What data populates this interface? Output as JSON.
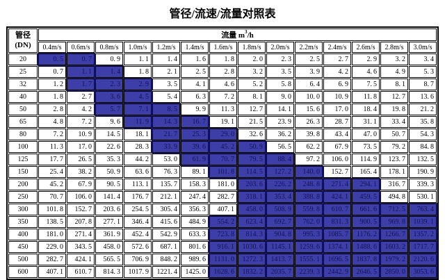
{
  "title": "管径/流速/流量对照表",
  "table": {
    "corner": {
      "line1": "管径",
      "line2": "(DN)"
    },
    "flow_header": {
      "prefix": "流量 m",
      "sup": "3",
      "suffix": "/h"
    },
    "columns": [
      "0.4m/s",
      "0.6m/s",
      "0.8m/s",
      "1.0m/s",
      "1.2m/s",
      "1.4m/s",
      "1.6m/s",
      "1.8m/s",
      "2.0m/s",
      "2.2m/s",
      "2.4m/s",
      "2.6m/s",
      "2.8m/s",
      "3.0m/s"
    ],
    "rows": [
      {
        "dn": "20",
        "values": [
          0.5,
          0.7,
          0.9,
          1.1,
          1.4,
          1.6,
          1.8,
          2.0,
          2.3,
          2.5,
          2.7,
          2.9,
          3.2,
          3.4
        ],
        "highlight": [
          0,
          1
        ]
      },
      {
        "dn": "25",
        "values": [
          0.7,
          1.1,
          1.4,
          1.8,
          2.1,
          2.5,
          2.8,
          3.2,
          3.5,
          3.9,
          4.2,
          4.6,
          4.9,
          5.3
        ],
        "highlight": [
          1,
          2
        ]
      },
      {
        "dn": "32",
        "values": [
          1.2,
          1.7,
          2.3,
          2.9,
          3.5,
          4.1,
          4.6,
          5.2,
          5.8,
          6.4,
          6.9,
          7.5,
          8.1,
          8.7
        ],
        "highlight": [
          1,
          3
        ]
      },
      {
        "dn": "40",
        "values": [
          1.8,
          2.7,
          3.6,
          4.5,
          5.4,
          6.3,
          7.2,
          8.1,
          9.0,
          10.0,
          10.9,
          11.8,
          12.7,
          13.6
        ],
        "highlight": [
          2,
          3
        ]
      },
      {
        "dn": "50",
        "values": [
          2.8,
          4.2,
          5.7,
          7.1,
          8.5,
          9.9,
          11.3,
          12.7,
          14.1,
          15.6,
          17.0,
          18.4,
          19.8,
          21.2
        ],
        "highlight": [
          2,
          4
        ]
      },
      {
        "dn": "65",
        "values": [
          4.8,
          7.2,
          9.6,
          11.9,
          14.3,
          16.7,
          19.1,
          21.5,
          23.9,
          26.3,
          28.7,
          31.1,
          33.4,
          35.8
        ],
        "highlight": [
          3,
          5
        ]
      },
      {
        "dn": "80",
        "values": [
          7.2,
          10.9,
          14.5,
          18.1,
          21.7,
          25.3,
          29.0,
          32.6,
          36.2,
          39.8,
          43.4,
          47.0,
          50.7,
          54.3
        ],
        "highlight": [
          4,
          6
        ]
      },
      {
        "dn": "100",
        "values": [
          11.3,
          17.0,
          22.6,
          28.3,
          33.9,
          39.6,
          45.2,
          50.9,
          56.5,
          62.2,
          67.9,
          73.5,
          79.2,
          84.8
        ],
        "highlight": [
          4,
          7
        ]
      },
      {
        "dn": "125",
        "values": [
          17.7,
          26.5,
          35.3,
          44.2,
          53.0,
          61.9,
          70.7,
          79.5,
          88.4,
          97.2,
          106.0,
          114.9,
          123.7,
          132.5
        ],
        "highlight": [
          5,
          8
        ]
      },
      {
        "dn": "150",
        "values": [
          25.4,
          38.2,
          50.9,
          63.6,
          76.3,
          89.1,
          101.8,
          114.5,
          127.2,
          140.0,
          152.7,
          165.4,
          178.1,
          190.9
        ],
        "highlight": [
          6,
          9
        ]
      },
      {
        "dn": "200",
        "values": [
          45.2,
          67.9,
          90.5,
          113.1,
          135.7,
          158.3,
          181.0,
          203.6,
          226.2,
          248.8,
          271.4,
          294.1,
          316.7,
          339.3
        ],
        "highlight": [
          7,
          11
        ]
      },
      {
        "dn": "250",
        "values": [
          70.7,
          106.0,
          141.4,
          176.7,
          212.1,
          247.4,
          282.7,
          318.1,
          353.4,
          388.8,
          424.1,
          459.5,
          494.8,
          530.1
        ],
        "highlight": [
          7,
          11
        ]
      },
      {
        "dn": "300",
        "values": [
          101.8,
          152.7,
          203.6,
          254.5,
          305.4,
          356.3,
          407.1,
          458.0,
          508.9,
          559.8,
          610.7,
          661.6,
          712.5,
          763.4
        ],
        "highlight": [
          7,
          13
        ]
      },
      {
        "dn": "350",
        "values": [
          138.5,
          207.8,
          277.1,
          346.4,
          415.6,
          484.9,
          554.2,
          623.4,
          692.7,
          762.0,
          831.3,
          900.5,
          969.8,
          1039.1
        ],
        "highlight": [
          6,
          13
        ]
      },
      {
        "dn": "400",
        "values": [
          181.0,
          271.4,
          361.9,
          452.4,
          542.9,
          633.3,
          723.8,
          814.3,
          904.8,
          995.3,
          1085.7,
          1176.2,
          1266.7,
          1357.2
        ],
        "highlight": [
          6,
          13
        ]
      },
      {
        "dn": "450",
        "values": [
          229.0,
          343.5,
          458.0,
          572.6,
          687.1,
          801.6,
          916.1,
          1030.6,
          1145.1,
          1259.6,
          1374.1,
          1488.6,
          1603.2,
          1717.7
        ],
        "highlight": [
          6,
          13
        ]
      },
      {
        "dn": "500",
        "values": [
          282.7,
          424.1,
          565.5,
          706.9,
          848.2,
          989.6,
          1131.0,
          1272.3,
          1413.7,
          1555.1,
          1696.5,
          1837.8,
          1979.2,
          2120.6
        ],
        "highlight": [
          6,
          13
        ]
      },
      {
        "dn": "600",
        "values": [
          407.1,
          610.7,
          814.3,
          1017.9,
          1221.4,
          1425.0,
          1628.6,
          1832.2,
          2035.7,
          2239.3,
          2442.9,
          2646.5,
          2850.0,
          3053.6
        ],
        "highlight": [
          6,
          13
        ]
      }
    ]
  },
  "colors": {
    "highlight_bg": "#3e3ea8",
    "highlight_text": "#12125a",
    "highlight_grid": "#222270",
    "border": "#000000",
    "text": "#000000",
    "background": "#ffffff"
  }
}
